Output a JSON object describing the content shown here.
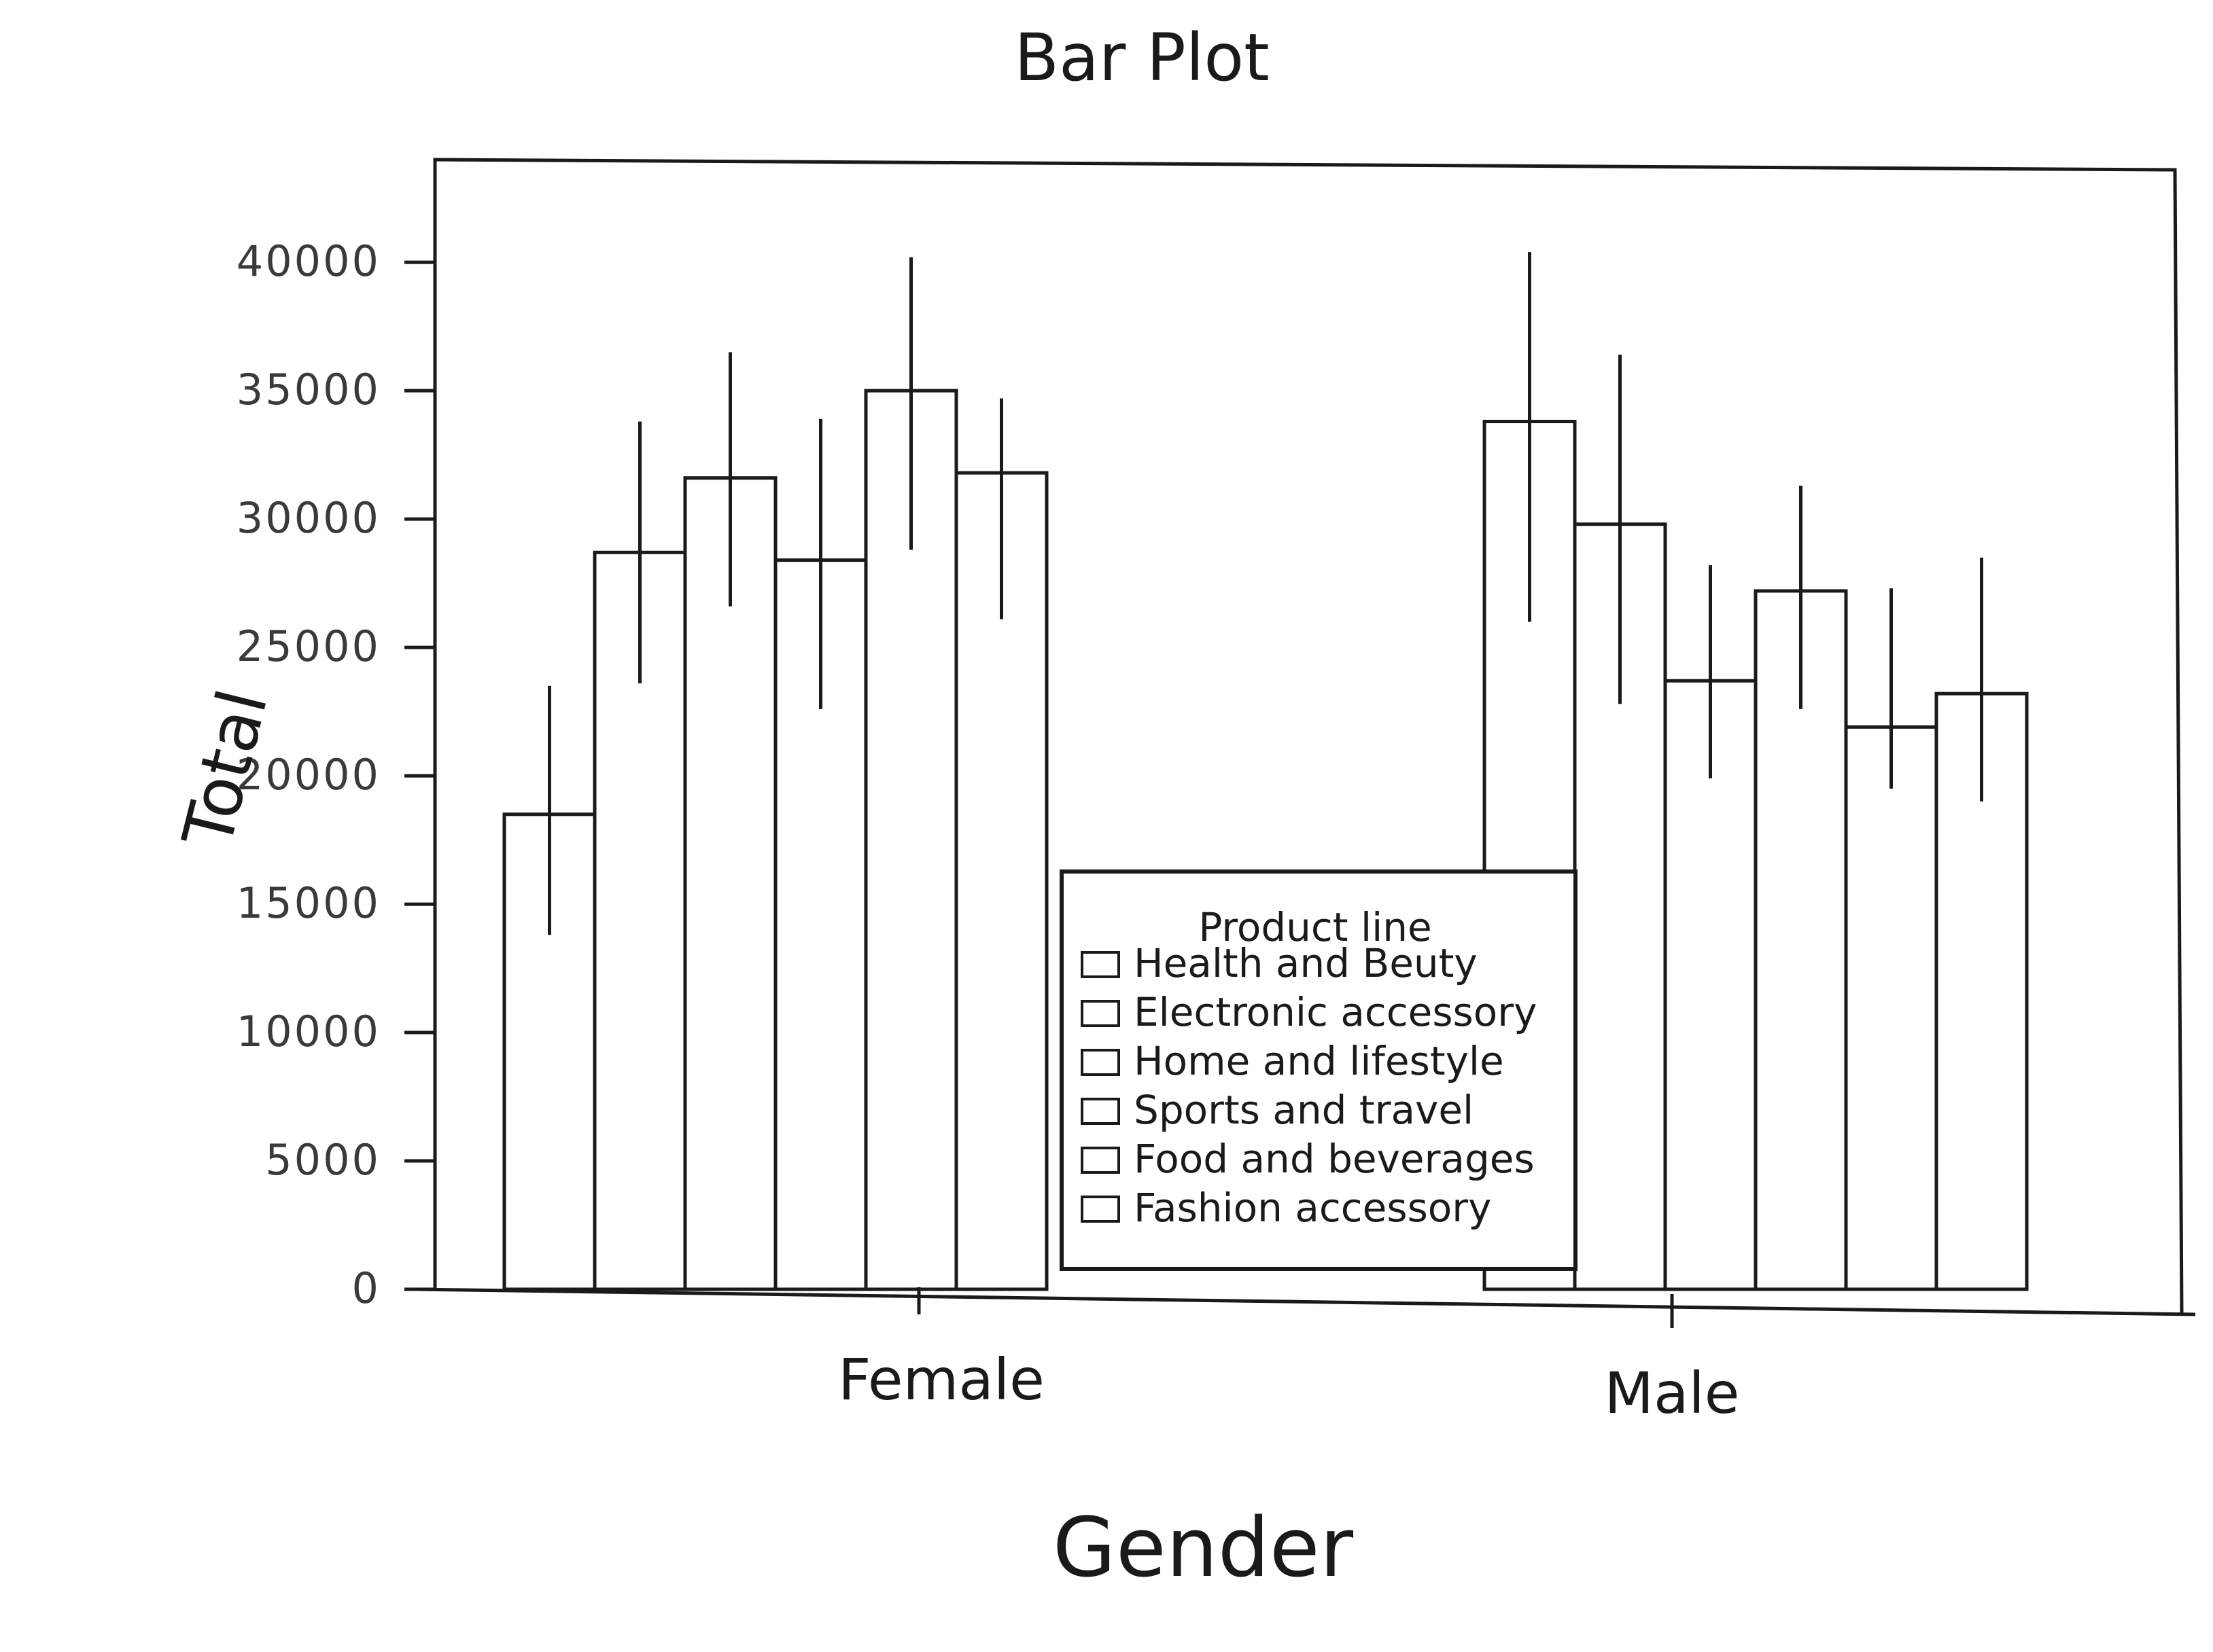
{
  "chart_data": {
    "type": "bar",
    "title": "Bar Plot",
    "xlabel": "Gender",
    "ylabel": "Total",
    "categories": [
      "Female",
      "Male"
    ],
    "ylim": [
      0,
      44000
    ],
    "yticks": [
      0,
      5000,
      10000,
      15000,
      20000,
      25000,
      30000,
      35000,
      40000
    ],
    "ytick_labels": [
      "0",
      "5000",
      "10000",
      "15000",
      "20000",
      "25000",
      "30000",
      "35000",
      "40000"
    ],
    "grid": false,
    "legend": {
      "title": "Product line",
      "placement": "bottom-center"
    },
    "series": [
      {
        "name": "Health and Beuty",
        "values": [
          18500,
          33800
        ],
        "errors": [
          [
            13800,
            23500
          ],
          [
            26000,
            40400
          ]
        ]
      },
      {
        "name": "Electronic accessory",
        "values": [
          28700,
          29800
        ],
        "errors": [
          [
            23600,
            33800
          ],
          [
            22800,
            36400
          ]
        ]
      },
      {
        "name": "Home and lifestyle",
        "values": [
          31600,
          23700
        ],
        "errors": [
          [
            26600,
            36500
          ],
          [
            19900,
            28200
          ]
        ]
      },
      {
        "name": "Sports and travel",
        "values": [
          28400,
          27200
        ],
        "errors": [
          [
            22600,
            33900
          ],
          [
            22600,
            31300
          ]
        ]
      },
      {
        "name": "Food and beverages",
        "values": [
          35000,
          21900
        ],
        "errors": [
          [
            28800,
            40200
          ],
          [
            19500,
            27300
          ]
        ]
      },
      {
        "name": "Fashion accessory",
        "values": [
          31800,
          23200
        ],
        "errors": [
          [
            26100,
            34700
          ],
          [
            19000,
            28500
          ]
        ]
      }
    ]
  }
}
